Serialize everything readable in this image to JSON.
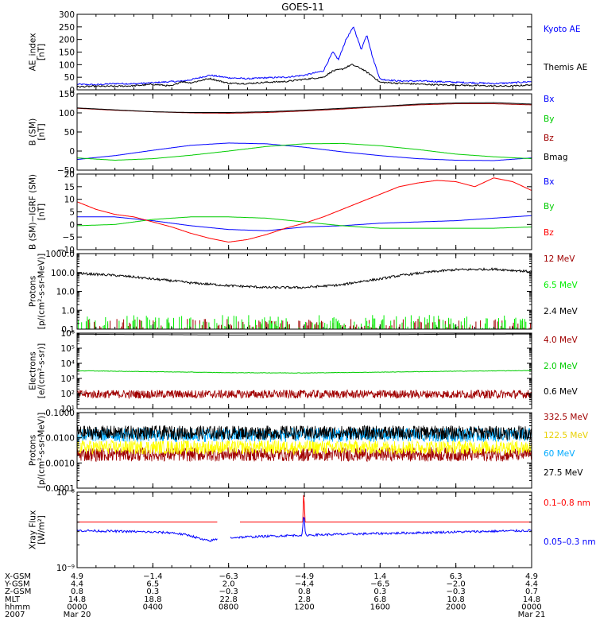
{
  "title": "GOES-11",
  "chart_data": [
    {
      "type": "line",
      "name": "ae",
      "ylabel": "AE_index\n[nT]",
      "ylim": [
        0,
        300
      ],
      "scale": "linear",
      "yticks": [
        0,
        50,
        100,
        150,
        200,
        250,
        300
      ],
      "yticklabels": [
        "0",
        "50",
        "100",
        "150",
        "200",
        "250",
        "300"
      ],
      "series": [
        {
          "name": "Kyoto AE",
          "color": "#0000ff",
          "x": [
            0,
            1,
            2,
            3,
            4,
            5,
            5.5,
            6,
            7,
            8,
            9,
            10,
            11,
            12,
            13,
            13.5,
            13.8,
            14.2,
            14.6,
            15,
            15.3,
            15.6,
            16,
            17,
            18,
            19,
            20,
            21,
            22,
            23,
            24
          ],
          "y": [
            22,
            20,
            25,
            24,
            28,
            33,
            34,
            40,
            58,
            48,
            44,
            48,
            50,
            58,
            75,
            150,
            120,
            200,
            250,
            160,
            220,
            130,
            42,
            35,
            35,
            33,
            30,
            28,
            25,
            28,
            33
          ]
        },
        {
          "name": "Themis AE",
          "color": "#000000",
          "x": [
            0,
            1,
            2,
            3,
            4,
            5,
            5.5,
            6,
            7,
            8,
            9,
            10,
            11,
            12,
            13,
            13.5,
            14,
            14.5,
            15,
            15.5,
            16,
            17,
            18,
            19,
            20,
            21,
            22,
            23,
            24
          ],
          "y": [
            12,
            14,
            14,
            16,
            22,
            15,
            33,
            28,
            45,
            26,
            25,
            30,
            33,
            42,
            50,
            75,
            82,
            100,
            85,
            60,
            30,
            26,
            23,
            20,
            19,
            17,
            15,
            15,
            20
          ]
        }
      ]
    },
    {
      "type": "line",
      "name": "bsm",
      "ylabel": "B (SM)\n[nT]",
      "ylim": [
        -50,
        150
      ],
      "scale": "linear",
      "yticks": [
        -50,
        0,
        50,
        100,
        150
      ],
      "yticklabels": [
        "−50",
        "0",
        "50",
        "100",
        "150"
      ],
      "series": [
        {
          "name": "Bx",
          "color": "#0000ff",
          "x": [
            0,
            2,
            4,
            6,
            8,
            10,
            12,
            14,
            16,
            18,
            20,
            22,
            24
          ],
          "y": [
            -22,
            -12,
            2,
            15,
            21,
            19,
            10,
            -2,
            -12,
            -20,
            -24,
            -25,
            -18
          ]
        },
        {
          "name": "By",
          "color": "#00cc00",
          "x": [
            0,
            2,
            4,
            6,
            8,
            10,
            12,
            14,
            16,
            18,
            20,
            22,
            24
          ],
          "y": [
            -18,
            -24,
            -20,
            -11,
            0,
            12,
            19,
            20,
            14,
            4,
            -8,
            -15,
            -20
          ]
        },
        {
          "name": "Bz",
          "color": "#a00000",
          "x": [
            0,
            2,
            4,
            6,
            8,
            10,
            12,
            14,
            16,
            18,
            20,
            22,
            24
          ],
          "y": [
            112,
            107,
            103,
            100,
            99,
            101,
            105,
            110,
            116,
            121,
            124,
            124,
            121
          ]
        },
        {
          "name": "Bmag",
          "color": "#000000",
          "x": [
            0,
            2,
            4,
            6,
            8,
            10,
            12,
            14,
            16,
            18,
            20,
            22,
            24
          ],
          "y": [
            113,
            108,
            103,
            101,
            101,
            103,
            107,
            112,
            117,
            123,
            126,
            127,
            123
          ]
        }
      ]
    },
    {
      "type": "line",
      "name": "bigrf",
      "ylabel": "B (SM)−IGRF (SM)\n[nT]",
      "ylim": [
        -10,
        20
      ],
      "scale": "linear",
      "yticks": [
        -10,
        -5,
        0,
        5,
        10,
        15,
        20
      ],
      "yticklabels": [
        "−10",
        "−5",
        "0",
        "5",
        "10",
        "15",
        "20"
      ],
      "series": [
        {
          "name": "Bx",
          "color": "#0000ff",
          "x": [
            0,
            2,
            4,
            6,
            8,
            10,
            12,
            14,
            16,
            18,
            20,
            22,
            24
          ],
          "y": [
            3,
            3,
            1.5,
            -0.5,
            -2,
            -2.5,
            -1,
            -0.5,
            0.5,
            1,
            1.5,
            2.5,
            3.5
          ]
        },
        {
          "name": "By",
          "color": "#00cc00",
          "x": [
            0,
            2,
            4,
            6,
            8,
            10,
            12,
            14,
            16,
            18,
            20,
            22,
            24
          ],
          "y": [
            -0.5,
            0,
            2,
            3,
            3,
            2.5,
            1,
            -0.5,
            -1.5,
            -1.5,
            -1.5,
            -1.5,
            -1
          ]
        },
        {
          "name": "Bz",
          "color": "#ff0000",
          "x": [
            0,
            1,
            2,
            3,
            4,
            5,
            6,
            7,
            8,
            9,
            10,
            11,
            12,
            13,
            14,
            15,
            16,
            17,
            18,
            19,
            20,
            21,
            22,
            23,
            24
          ],
          "y": [
            9,
            6,
            4,
            3,
            1,
            -1,
            -3.5,
            -5.5,
            -7,
            -6,
            -4,
            -1.5,
            0.5,
            3,
            6,
            9,
            12,
            15,
            16.5,
            17.5,
            17,
            15,
            18.5,
            17,
            13.5
          ]
        }
      ]
    },
    {
      "type": "line",
      "name": "protons-low",
      "ylabel": "Protons\n[p/(cm²-s-sr-MeV)]",
      "ylim": [
        0.1,
        1000
      ],
      "scale": "log",
      "yticks": [
        0.1,
        1,
        10,
        100,
        1000
      ],
      "yticklabels": [
        "0.1",
        "1.0",
        "10.0",
        "100.0",
        "1000.0"
      ],
      "series": [
        {
          "name": "12 MeV",
          "color": "#a00000",
          "noise": "spikes",
          "base": 0.1
        },
        {
          "name": "6.5 MeV",
          "color": "#00ee00",
          "noise": "spikes",
          "base": 0.1
        },
        {
          "name": "2.4 MeV",
          "color": "#000000",
          "noise": "medium",
          "x": [
            0,
            2,
            4,
            6,
            8,
            10,
            12,
            14,
            16,
            18,
            20,
            22,
            24
          ],
          "y": [
            90,
            70,
            45,
            28,
            20,
            16,
            16,
            22,
            45,
            90,
            140,
            150,
            110
          ]
        }
      ]
    },
    {
      "type": "line",
      "name": "electrons",
      "ylabel": "Electrons\n[e/(cm²-s-sr)]",
      "ylim": [
        10,
        1000000
      ],
      "scale": "log",
      "yticks": [
        10,
        100,
        1000,
        10000,
        100000,
        1000000
      ],
      "yticklabels": [
        "10¹",
        "10²",
        "10³",
        "10⁴",
        "10⁵",
        "10⁶"
      ],
      "series": [
        {
          "name": "4.0 MeV",
          "color": "#a00000",
          "noise": "heavy",
          "x": [
            0,
            24
          ],
          "y": [
            90,
            90
          ]
        },
        {
          "name": "2.0 MeV",
          "color": "#00cc00",
          "noise": "light",
          "x": [
            0,
            4,
            8,
            12,
            16,
            20,
            24
          ],
          "y": [
            3200,
            2800,
            2400,
            2300,
            2600,
            3000,
            3300
          ]
        },
        {
          "name": "0.6 MeV",
          "color": "#000000",
          "x": [
            0,
            4,
            8,
            12,
            16,
            20,
            24
          ],
          "y": [
            850000,
            800000,
            750000,
            760000,
            800000,
            850000,
            880000
          ]
        }
      ]
    },
    {
      "type": "line",
      "name": "protons-high",
      "ylabel": "Protons\n[p/(cm²-s-sr-MeV)]",
      "ylim": [
        0.0001,
        0.1
      ],
      "scale": "log",
      "yticks": [
        0.0001,
        0.001,
        0.01,
        0.1
      ],
      "yticklabels": [
        "0.0001",
        "0.0010",
        "0.0100",
        "0.1000"
      ],
      "series": [
        {
          "name": "332.5 MeV",
          "color": "#a00000",
          "noise": "heavy",
          "x": [
            0,
            24
          ],
          "y": [
            0.0022,
            0.0022
          ]
        },
        {
          "name": "122.5 MeV",
          "color": "#ffff00",
          "noise": "heavy",
          "x": [
            0,
            24
          ],
          "y": [
            0.0042,
            0.0042
          ]
        },
        {
          "name": "60 MeV",
          "color": "#00aaff",
          "noise": "heavy",
          "x": [
            0,
            24
          ],
          "y": [
            0.013,
            0.013
          ]
        },
        {
          "name": "27.5 MeV",
          "color": "#000000",
          "noise": "heavy",
          "x": [
            0,
            24
          ],
          "y": [
            0.016,
            0.016
          ]
        }
      ]
    },
    {
      "type": "line",
      "name": "xray",
      "ylabel": "Xray Flux\n[W/m²]",
      "ylim": [
        1e-09,
        1e-08
      ],
      "scale": "log",
      "yticks": [
        1e-09,
        1e-08
      ],
      "yticklabels": [
        "10⁻⁹",
        "10⁻⁸"
      ],
      "series": [
        {
          "name": "0.1–0.8 nm",
          "color": "#ff0000",
          "segments": [
            {
              "x": [
                0,
                7.4
              ],
              "y": [
                4e-09,
                4e-09
              ]
            },
            {
              "x": [
                8.6,
                11.92,
                11.96,
                11.98,
                12.02,
                24
              ],
              "y": [
                4e-09,
                4e-09,
                9.5e-09,
                9.5e-09,
                4e-09,
                4e-09
              ]
            }
          ]
        },
        {
          "name": "0.05–0.3 nm",
          "color": "#0000ff",
          "noise": "light",
          "segments": [
            {
              "x": [
                0,
                3,
                5,
                6,
                6.6,
                7,
                7.4
              ],
              "y": [
                3.1e-09,
                3e-09,
                2.9e-09,
                2.65e-09,
                2.35e-09,
                2.25e-09,
                2.4e-09
              ]
            },
            {
              "x": [
                8.1,
                11.9,
                11.95,
                12.0,
                12.05,
                24
              ],
              "y": [
                2.5e-09,
                2.7e-09,
                4.6e-09,
                4.6e-09,
                2.7e-09,
                3.1e-09
              ]
            }
          ]
        }
      ]
    }
  ],
  "x_axis": {
    "range": [
      0,
      24
    ],
    "ticks": [
      0,
      4,
      8,
      12,
      16,
      20,
      24
    ],
    "rows": [
      {
        "label": "X-GSM",
        "values": [
          "4.9",
          "−1.4",
          "−6.3",
          "−4.9",
          "1.4",
          "6.3",
          "4.9"
        ]
      },
      {
        "label": "Y-GSM",
        "values": [
          "4.4",
          "6.5",
          "2.0",
          "−4.4",
          "−6.5",
          "−2.0",
          "4.4"
        ]
      },
      {
        "label": "Z-GSM",
        "values": [
          "0.8",
          "0.3",
          "−0.3",
          "0.8",
          "0.3",
          "−0.3",
          "0.7"
        ]
      },
      {
        "label": "MLT",
        "values": [
          "14.8",
          "18.8",
          "22.8",
          "2.8",
          "6.8",
          "10.8",
          "14.8"
        ]
      },
      {
        "label": "hhmm",
        "values": [
          "0000",
          "0400",
          "0800",
          "1200",
          "1600",
          "2000",
          "0000"
        ]
      },
      {
        "label": "2007",
        "values": [
          "Mar 20",
          "",
          "",
          "",
          "",
          "",
          "Mar 21"
        ]
      }
    ]
  }
}
